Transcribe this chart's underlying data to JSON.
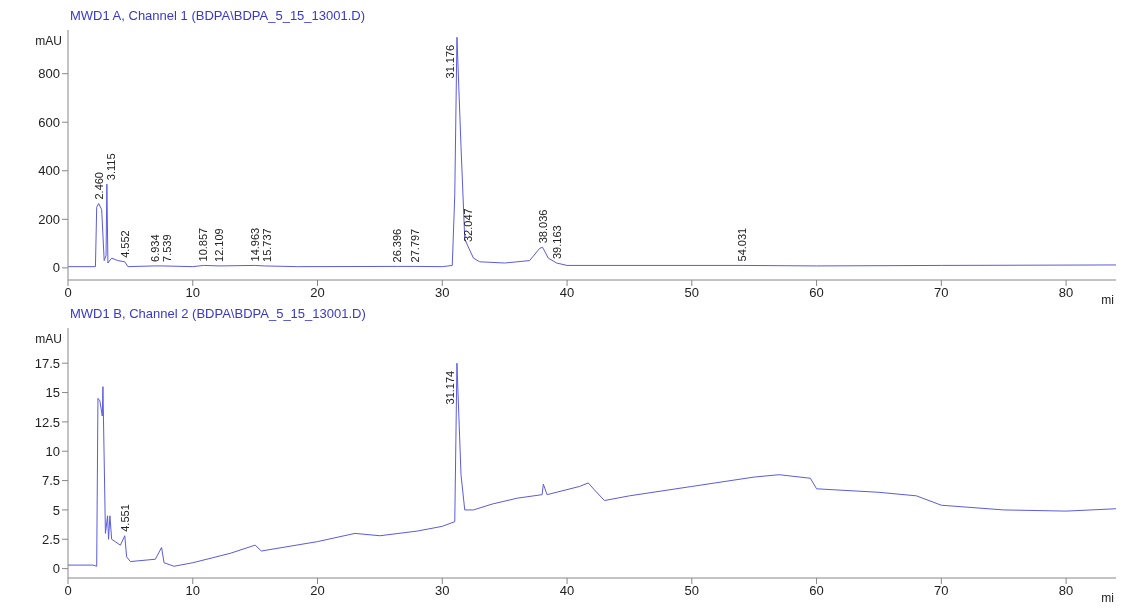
{
  "chart_data": [
    {
      "type": "line",
      "title": "MWD1 A, Channel 1 (BDPA\\BDPA_5_15_13001.D)",
      "xlabel": "mi",
      "ylabel": "mAU",
      "xlim": [
        0,
        84
      ],
      "ylim": [
        -50,
        980
      ],
      "xticks": [
        0,
        10,
        20,
        30,
        40,
        50,
        60,
        70,
        80
      ],
      "yticks": [
        0,
        200,
        400,
        600,
        800
      ],
      "grid": false,
      "marker": "none",
      "line_style": "solid",
      "series": [
        {
          "color": "#5b5be0",
          "x": [
            0,
            2.2,
            2.3,
            2.46,
            2.7,
            2.9,
            3.05,
            3.115,
            3.2,
            3.5,
            4.0,
            4.552,
            4.8,
            6.934,
            7.539,
            10,
            10.857,
            12.109,
            14.963,
            15.737,
            18.4,
            26.396,
            27.797,
            30,
            30.8,
            31.0,
            31.176,
            31.5,
            31.8,
            32.047,
            32.5,
            33,
            35,
            37,
            37.8,
            38.036,
            38.5,
            39.163,
            40,
            54.031,
            60,
            70,
            84
          ],
          "values": [
            5,
            5,
            250,
            265,
            240,
            30,
            50,
            345,
            20,
            40,
            30,
            25,
            5,
            8,
            8,
            5,
            10,
            8,
            10,
            8,
            5,
            6,
            6,
            5,
            10,
            300,
            950,
            500,
            120,
            90,
            40,
            25,
            20,
            30,
            80,
            85,
            40,
            20,
            10,
            10,
            8,
            10,
            12
          ]
        }
      ],
      "annotations": [
        {
          "text": "2.460",
          "x": 2.46,
          "y": 265
        },
        {
          "text": "3.115",
          "x": 3.115,
          "y": 345
        },
        {
          "text": "4.552",
          "x": 4.552,
          "y": 25
        },
        {
          "text": "6.934",
          "x": 6.934,
          "y": 8
        },
        {
          "text": "7.539",
          "x": 7.539,
          "y": 8
        },
        {
          "text": "10.857",
          "x": 10.857,
          "y": 10
        },
        {
          "text": "12.109",
          "x": 12.109,
          "y": 8
        },
        {
          "text": "14.963",
          "x": 14.963,
          "y": 10
        },
        {
          "text": "15.737",
          "x": 15.737,
          "y": 8
        },
        {
          "text": "26.396",
          "x": 26.396,
          "y": 6
        },
        {
          "text": "27.797",
          "x": 27.797,
          "y": 6
        },
        {
          "text": "31.176",
          "x": 31.176,
          "y": 950
        },
        {
          "text": "32.047",
          "x": 32.047,
          "y": 90
        },
        {
          "text": "38.036",
          "x": 38.036,
          "y": 85
        },
        {
          "text": "39.163",
          "x": 39.163,
          "y": 20
        },
        {
          "text": "54.031",
          "x": 54.031,
          "y": 10
        }
      ]
    },
    {
      "type": "line",
      "title": "MWD1 B, Channel 2 (BDPA\\BDPA_5_15_13001.D)",
      "xlabel": "mi",
      "ylabel": "mAU",
      "xlim": [
        0,
        84
      ],
      "ylim": [
        -0.8,
        20.5
      ],
      "xticks": [
        0,
        10,
        20,
        30,
        40,
        50,
        60,
        70,
        80
      ],
      "yticks": [
        0,
        2.5,
        5,
        7.5,
        10,
        12.5,
        15,
        17.5
      ],
      "grid": false,
      "marker": "none",
      "line_style": "solid",
      "series": [
        {
          "color": "#5b5be0",
          "x": [
            0,
            2,
            2.3,
            2.4,
            2.55,
            2.75,
            2.8,
            3.0,
            3.17,
            3.25,
            3.36,
            3.5,
            4.2,
            4.551,
            4.7,
            5,
            7.0,
            7.5,
            7.7,
            8.5,
            10,
            13,
            15,
            15.5,
            20,
            23,
            25,
            28,
            30,
            31,
            31.174,
            31.5,
            31.8,
            32.5,
            34,
            36,
            38,
            38.1,
            38.4,
            41,
            41.7,
            42.2,
            43,
            45,
            50,
            55,
            57,
            59.5,
            60,
            65,
            68,
            70,
            75,
            80,
            84
          ],
          "values": [
            0.3,
            0.3,
            0.2,
            14.5,
            14.3,
            13,
            15.5,
            3,
            4.5,
            2.5,
            4.5,
            2.5,
            2,
            2.8,
            1,
            0.6,
            0.8,
            1.8,
            0.5,
            0.2,
            0.5,
            1.3,
            2,
            1.5,
            2.3,
            3,
            2.8,
            3.2,
            3.6,
            4,
            17.5,
            8,
            5,
            5,
            5.5,
            6,
            6.3,
            7.2,
            6.3,
            7,
            7.3,
            6.7,
            5.8,
            6.2,
            7,
            7.8,
            8,
            7.7,
            6.8,
            6.5,
            6.2,
            5.4,
            5,
            4.9,
            5.1
          ]
        }
      ],
      "annotations": [
        {
          "text": "4.551",
          "x": 4.551,
          "y": 2.8
        },
        {
          "text": "31.174",
          "x": 31.174,
          "y": 17.5
        }
      ]
    }
  ]
}
